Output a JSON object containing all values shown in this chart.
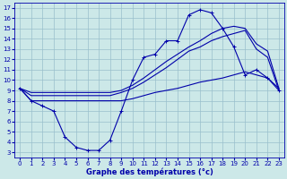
{
  "xlabel": "Graphe des températures (°c)",
  "xlim": [
    -0.5,
    23.5
  ],
  "ylim": [
    2.5,
    17.5
  ],
  "xticks": [
    0,
    1,
    2,
    3,
    4,
    5,
    6,
    7,
    8,
    9,
    10,
    11,
    12,
    13,
    14,
    15,
    16,
    17,
    18,
    19,
    20,
    21,
    22,
    23
  ],
  "yticks": [
    3,
    4,
    5,
    6,
    7,
    8,
    9,
    10,
    11,
    12,
    13,
    14,
    15,
    16,
    17
  ],
  "bg_color": "#cce8e8",
  "grid_color": "#99bfcc",
  "line_color": "#0000aa",
  "lines": [
    {
      "x": [
        0,
        1,
        2,
        3,
        4,
        5,
        6,
        7,
        8,
        9,
        10,
        11,
        12,
        13,
        14,
        15,
        16,
        17,
        18,
        19,
        20,
        21,
        22,
        23
      ],
      "y": [
        9.2,
        8.0,
        7.5,
        7.0,
        4.5,
        3.5,
        3.2,
        3.2,
        4.2,
        7.0,
        10.0,
        12.2,
        12.5,
        13.8,
        13.8,
        16.3,
        16.8,
        16.5,
        15.0,
        13.2,
        10.5,
        11.0,
        10.2,
        9.0
      ],
      "marker": "+"
    },
    {
      "x": [
        0,
        23
      ],
      "y": [
        9.2,
        9.2
      ],
      "marker": null,
      "full_x": [
        0,
        1,
        2,
        3,
        4,
        5,
        6,
        7,
        8,
        9,
        10,
        11,
        12,
        13,
        14,
        15,
        16,
        17,
        18,
        19,
        20,
        21,
        22,
        23
      ],
      "full_y": [
        9.2,
        8.8,
        8.8,
        8.8,
        8.8,
        8.8,
        8.8,
        8.8,
        8.8,
        9.0,
        9.5,
        10.2,
        11.0,
        11.8,
        12.5,
        13.2,
        13.8,
        14.5,
        15.0,
        15.2,
        15.0,
        13.5,
        12.8,
        9.2
      ]
    },
    {
      "x": [
        0,
        1,
        2,
        3,
        4,
        5,
        6,
        7,
        8,
        9,
        10,
        11,
        12,
        13,
        14,
        15,
        16,
        17,
        18,
        19,
        20,
        21,
        22,
        23
      ],
      "y": [
        9.2,
        8.5,
        8.5,
        8.5,
        8.5,
        8.5,
        8.5,
        8.5,
        8.5,
        8.8,
        9.2,
        9.8,
        10.5,
        11.2,
        12.0,
        12.8,
        13.2,
        13.8,
        14.2,
        14.5,
        14.8,
        13.0,
        12.2,
        9.0
      ],
      "marker": null
    },
    {
      "x": [
        0,
        1,
        2,
        3,
        4,
        5,
        6,
        7,
        8,
        9,
        10,
        11,
        12,
        13,
        14,
        15,
        16,
        17,
        18,
        19,
        20,
        21,
        22,
        23
      ],
      "y": [
        9.2,
        8.0,
        8.0,
        8.0,
        8.0,
        8.0,
        8.0,
        8.0,
        8.0,
        8.0,
        8.2,
        8.5,
        8.8,
        9.0,
        9.2,
        9.5,
        9.8,
        10.0,
        10.2,
        10.5,
        10.8,
        10.5,
        10.2,
        9.2
      ],
      "marker": null
    }
  ]
}
